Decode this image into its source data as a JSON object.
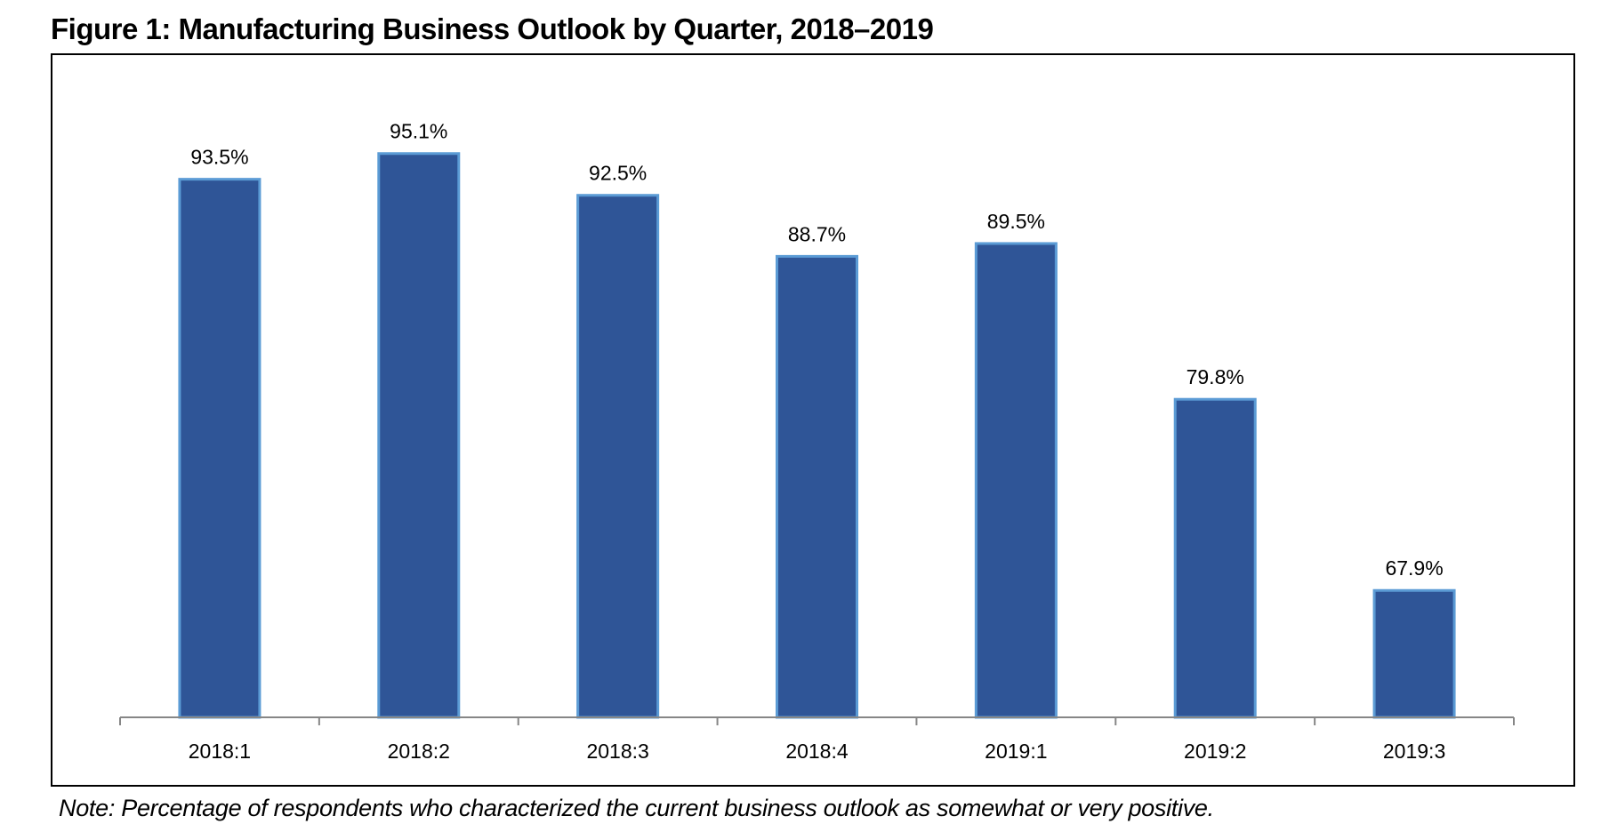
{
  "chart_data": {
    "type": "bar",
    "title": "Figure 1: Manufacturing Business Outlook by Quarter, 2018–2019",
    "categories": [
      "2018:1",
      "2018:2",
      "2018:3",
      "2018:4",
      "2019:1",
      "2019:2",
      "2019:3"
    ],
    "values": [
      93.5,
      95.1,
      92.5,
      88.7,
      89.5,
      79.8,
      67.9
    ],
    "data_labels": [
      "93.5%",
      "95.1%",
      "92.5%",
      "88.7%",
      "89.5%",
      "79.8%",
      "67.9%"
    ],
    "xlabel": "",
    "ylabel": "",
    "ylim": [
      60,
      100
    ],
    "y_axis_visible": false,
    "grid": false,
    "legend": "none",
    "note": "Note: Percentage of respondents who characterized the current business outlook as somewhat or very positive.",
    "colors": {
      "bar_fill": "#2F5597",
      "bar_border": "#5B9BD5",
      "axis": "#868686"
    }
  }
}
